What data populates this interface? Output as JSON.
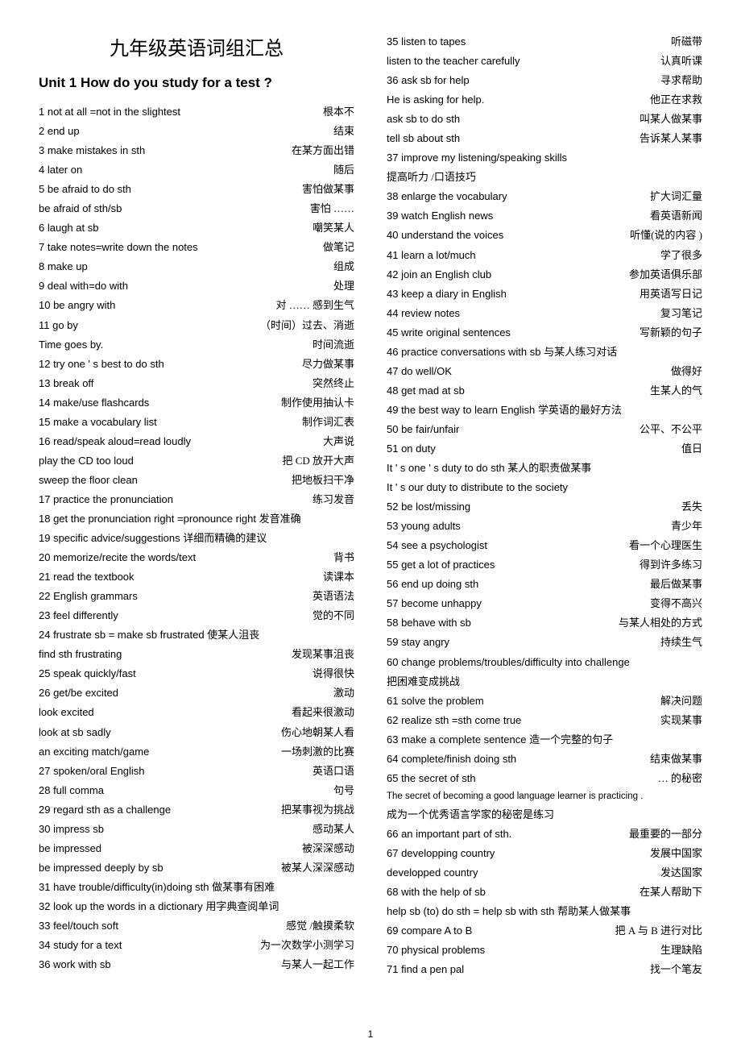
{
  "mainTitle": "九年级英语词组汇总",
  "unitTitle": "Unit 1 How do you study for a test ?",
  "pageNumber": "1",
  "leftEntries": [
    {
      "en": "1 not at all =not in the slightest",
      "zh": "根本不"
    },
    {
      "en": "2 end up",
      "zh": "结束"
    },
    {
      "en": "3 make mistakes in sth",
      "zh": "在某方面出错"
    },
    {
      "en": "4 later on",
      "zh": "随后"
    },
    {
      "en": "5 be afraid to do sth",
      "zh": "害怕做某事"
    },
    {
      "en": "be afraid of sth/sb",
      "zh": "害怕 ……"
    },
    {
      "en": "6 laugh at sb",
      "zh": "嘲笑某人"
    },
    {
      "en": "7 take notes=write down the notes",
      "zh": "做笔记"
    },
    {
      "en": "8 make up",
      "zh": "组成"
    },
    {
      "en": "9 deal with=do with",
      "zh": "处理"
    },
    {
      "en": "10 be angry with",
      "zh": "对 …… 感到生气"
    },
    {
      "en": "11 go by",
      "zh": "（时间）过去、消逝"
    },
    {
      "en": "Time goes by.",
      "zh": "时间流逝"
    },
    {
      "en": "12 try one ' s best to do sth",
      "zh": "尽力做某事"
    },
    {
      "en": "13 break off",
      "zh": "突然终止"
    },
    {
      "en": "14 make/use flashcards",
      "zh": "制作使用抽认卡"
    },
    {
      "en": "15 make a vocabulary list",
      "zh": "制作词汇表"
    },
    {
      "en": "16 read/speak aloud=read loudly",
      "zh": "大声说"
    },
    {
      "en": "play the CD too loud",
      "zh": "把 CD 放开大声"
    },
    {
      "en": "sweep the floor clean",
      "zh": "把地板扫干净"
    },
    {
      "en": "17 practice the pronunciation",
      "zh": "练习发音"
    },
    {
      "en": "18 get the pronunciation right =pronounce right",
      "zh": "发音准确",
      "wrap": true
    },
    {
      "en": "19 specific advice/suggestions",
      "zh": "详细而精确的建议",
      "wrap": true
    },
    {
      "en": "20 memorize/recite the words/text",
      "zh": "背书"
    },
    {
      "en": "21 read the textbook",
      "zh": "读课本"
    },
    {
      "en": "22 English grammars",
      "zh": "英语语法"
    },
    {
      "en": "23 feel differently",
      "zh": "觉的不同"
    },
    {
      "en": "24 frustrate sb = make sb frustrated",
      "zh": "使某人沮丧",
      "wrap": true
    },
    {
      "en": "find sth frustrating",
      "zh": "发现某事沮丧"
    },
    {
      "en": "25 speak quickly/fast",
      "zh": "说得很快"
    },
    {
      "en": "26 get/be excited",
      "zh": "激动"
    },
    {
      "en": "look excited",
      "zh": "看起来很激动"
    },
    {
      "en": "look at sb sadly",
      "zh": "伤心地朝某人看"
    },
    {
      "en": "an exciting match/game",
      "zh": "一场刺激的比赛"
    },
    {
      "en": "27 spoken/oral English",
      "zh": "英语口语"
    },
    {
      "en": "28 full comma",
      "zh": "句号"
    },
    {
      "en": "29 regard sth as a challenge",
      "zh": "把某事视为挑战"
    },
    {
      "en": "30 impress sb",
      "zh": "感动某人"
    },
    {
      "en": "be impressed",
      "zh": "被深深感动"
    },
    {
      "en": "be impressed deeply by sb",
      "zh": "被某人深深感动"
    },
    {
      "en": "31 have trouble/difficulty(in)doing sth",
      "zh": "做某事有困难",
      "wrap": true
    },
    {
      "en": "32 look up the words in a dictionary",
      "zh": "用字典查阅单词",
      "wrap": true
    },
    {
      "en": "33 feel/touch soft",
      "zh": "感觉 /触摸柔软"
    },
    {
      "en": "34 study for a text",
      "zh": "为一次数学小测学习"
    },
    {
      "en": "36 work with sb",
      "zh": "与某人一起工作"
    }
  ],
  "rightEntries": [
    {
      "en": "35 listen to tapes",
      "zh": "听磁带"
    },
    {
      "en": "listen to the teacher carefully",
      "zh": "认真听课"
    },
    {
      "en": "36 ask sb for help",
      "zh": "寻求帮助"
    },
    {
      "en": "He is asking for help.",
      "zh": "他正在求救"
    },
    {
      "en": "ask sb to do sth",
      "zh": "叫某人做某事"
    },
    {
      "en": "tell sb about sth",
      "zh": "告诉某人某事"
    },
    {
      "en": "37 improve my listening/speaking skills",
      "zh": "",
      "wrap": true
    },
    {
      "en": "",
      "zh": "提高听力 /口语技巧",
      "wrap": true
    },
    {
      "en": "38 enlarge the vocabulary",
      "zh": "扩大词汇量"
    },
    {
      "en": "39 watch English news",
      "zh": "看英语新闻"
    },
    {
      "en": "40 understand the voices",
      "zh": "听懂(说的内容  )"
    },
    {
      "en": "41 learn a lot/much",
      "zh": "学了很多"
    },
    {
      "en": "42 join an English club",
      "zh": "参加英语俱乐部"
    },
    {
      "en": "43 keep a diary in English",
      "zh": "用英语写日记"
    },
    {
      "en": "44 review notes",
      "zh": "复习笔记"
    },
    {
      "en": "45 write original sentences",
      "zh": "写新颖的句子"
    },
    {
      "en": "46 practice conversations with sb",
      "zh": "与某人练习对话",
      "wrap": true
    },
    {
      "en": "47 do well/OK",
      "zh": "做得好"
    },
    {
      "en": "48 get mad at sb",
      "zh": "生某人的气"
    },
    {
      "en": "49 the best way to learn English",
      "zh": "学英语的最好方法",
      "wrap": true
    },
    {
      "en": "50 be fair/unfair",
      "zh": "公平、不公平"
    },
    {
      "en": "51 on duty",
      "zh": "值日"
    },
    {
      "en": "It ' s one ' s duty to do sth",
      "zh": "某人的职责做某事",
      "wrap": true
    },
    {
      "en": "It ' s our duty to distribute to the society",
      "zh": "",
      "wrap": true
    },
    {
      "en": "52 be lost/missing",
      "zh": "丢失"
    },
    {
      "en": "53 young adults",
      "zh": "青少年"
    },
    {
      "en": "54 see a psychologist",
      "zh": "看一个心理医生"
    },
    {
      "en": "55 get a lot of practices",
      "zh": "得到许多练习"
    },
    {
      "en": "56 end up doing sth",
      "zh": "最后做某事"
    },
    {
      "en": "57 become unhappy",
      "zh": "变得不高兴"
    },
    {
      "en": "58 behave with sb",
      "zh": "与某人相处的方式"
    },
    {
      "en": "59 stay angry",
      "zh": "持续生气"
    },
    {
      "en": "60 change problems/troubles/difficulty into challenge",
      "zh": "",
      "wrap": true
    },
    {
      "en": "",
      "zh": "把困难变成挑战",
      "wrap": true
    },
    {
      "en": "61 solve the problem",
      "zh": "解决问题"
    },
    {
      "en": "62 realize sth =sth come true",
      "zh": "实现某事"
    },
    {
      "en": "63 make a complete sentence",
      "zh": "造一个完整的句子",
      "wrap": true
    },
    {
      "en": "64 complete/finish doing sth",
      "zh": "结束做某事"
    },
    {
      "en": "65 the secret of sth",
      "zh": "… 的秘密"
    },
    {
      "en": "The secret of becoming a good language learner is practicing .",
      "zh": "",
      "wrap": true,
      "small": true
    },
    {
      "en": "",
      "zh": "成为一个优秀语言学家的秘密是练习",
      "wrap": true
    },
    {
      "en": "66 an important part of sth.",
      "zh": "最重要的一部分"
    },
    {
      "en": "67 developping country",
      "zh": "发展中国家"
    },
    {
      "en": "     developped country",
      "zh": "发达国家"
    },
    {
      "en": "68 with the help of sb",
      "zh": "在某人帮助下"
    },
    {
      "en": "   help sb (to) do sth = help sb with sth",
      "zh": "帮助某人做某事",
      "wrap": true
    },
    {
      "en": "69 compare A to B",
      "zh": "把 A 与 B 进行对比"
    },
    {
      "en": "70 physical problems",
      "zh": "生理缺陷"
    },
    {
      "en": "71 find a pen pal",
      "zh": "找一个笔友"
    }
  ]
}
